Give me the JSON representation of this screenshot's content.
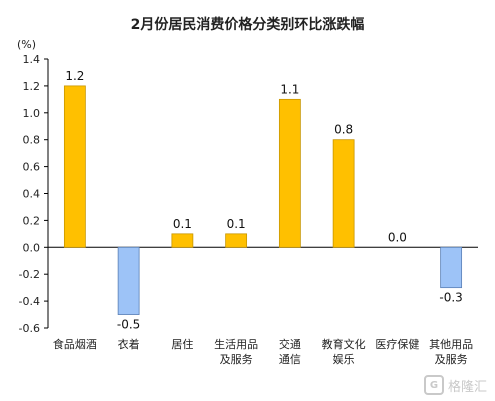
{
  "chart_data": {
    "type": "bar",
    "title": "2月份居民消费价格分类别环比涨跌幅",
    "unit": "(%)",
    "categories": [
      [
        "食品烟酒"
      ],
      [
        "衣着"
      ],
      [
        "居住"
      ],
      [
        "生活用品",
        "及服务"
      ],
      [
        "交通",
        "通信"
      ],
      [
        "教育文化",
        "娱乐"
      ],
      [
        "医疗保健"
      ],
      [
        "其他用品",
        "及服务"
      ]
    ],
    "values": [
      1.2,
      -0.5,
      0.1,
      0.1,
      1.1,
      0.8,
      0.0,
      -0.3
    ],
    "data_labels": [
      "1.2",
      "-0.5",
      "0.1",
      "0.1",
      "1.1",
      "0.8",
      "0.0",
      "-0.3"
    ],
    "ylim": [
      -0.6,
      1.4
    ],
    "yticks": [
      "-0.6",
      "-0.4",
      "-0.2",
      "0.0",
      "0.2",
      "0.4",
      "0.6",
      "0.8",
      "1.0",
      "1.2",
      "1.4"
    ],
    "colors": {
      "positive": "#FFC000",
      "positive_border": "#C89600",
      "negative": "#9DC3F7",
      "negative_border": "#5A7FB5",
      "axis": "#000000"
    },
    "grid": false,
    "legend": "none"
  },
  "watermark": {
    "logo_icon": "G",
    "text": "格隆汇"
  }
}
